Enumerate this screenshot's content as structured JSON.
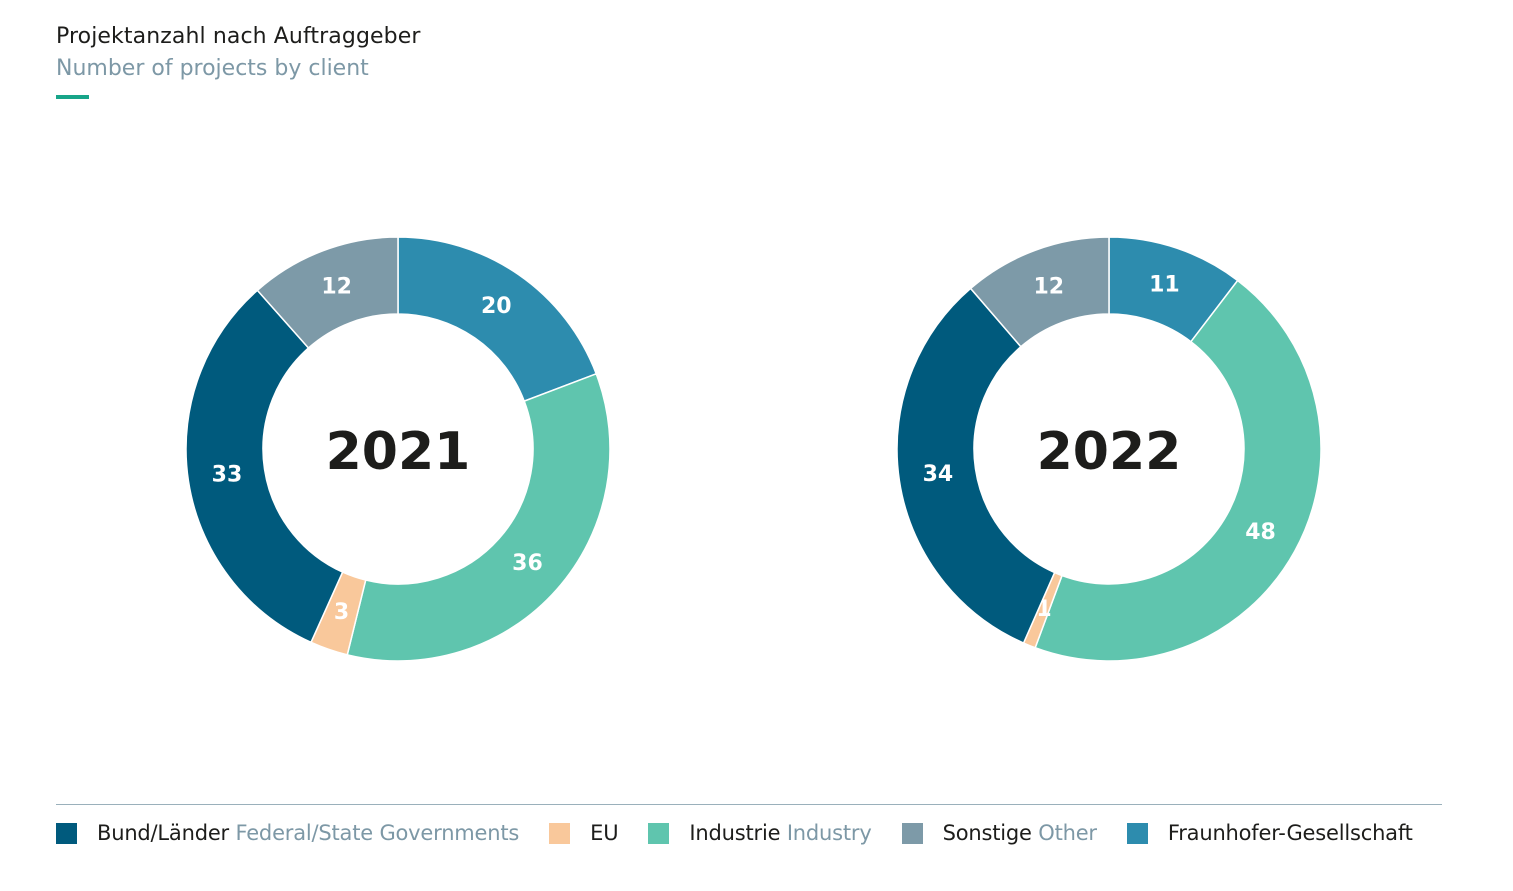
{
  "header": {
    "title": "Projektanzahl nach Auftraggeber",
    "subtitle": "Number of projects by client",
    "accent_color": "#17a589"
  },
  "legend": [
    {
      "label_de": "Bund/Länder",
      "label_en": "Federal/State Governments",
      "color": "#005a7d"
    },
    {
      "label_de": "EU",
      "label_en": "",
      "color": "#f9c89b"
    },
    {
      "label_de": "Industrie",
      "label_en": "Industry",
      "color": "#5fc5ae"
    },
    {
      "label_de": "Sonstige",
      "label_en": "Other",
      "color": "#7d9aa8"
    },
    {
      "label_de": "Fraunhofer-Gesellschaft",
      "label_en": "",
      "color": "#2d8cae"
    }
  ],
  "chart_data": [
    {
      "type": "pie",
      "subtype": "donut",
      "center_label": "2021",
      "categories": [
        "Fraunhofer-Gesellschaft",
        "Industrie Industry",
        "EU",
        "Bund/Länder Federal/State Governments",
        "Sonstige Other"
      ],
      "values": [
        20,
        36,
        3,
        33,
        12
      ],
      "colors": [
        "#2d8cae",
        "#5fc5ae",
        "#f9c89b",
        "#005a7d",
        "#7d9aa8"
      ]
    },
    {
      "type": "pie",
      "subtype": "donut",
      "center_label": "2022",
      "categories": [
        "Fraunhofer-Gesellschaft",
        "Industrie Industry",
        "EU",
        "Bund/Länder Federal/State Governments",
        "Sonstige Other"
      ],
      "values": [
        11,
        48,
        1,
        34,
        12
      ],
      "colors": [
        "#2d8cae",
        "#5fc5ae",
        "#f9c89b",
        "#005a7d",
        "#7d9aa8"
      ]
    }
  ]
}
